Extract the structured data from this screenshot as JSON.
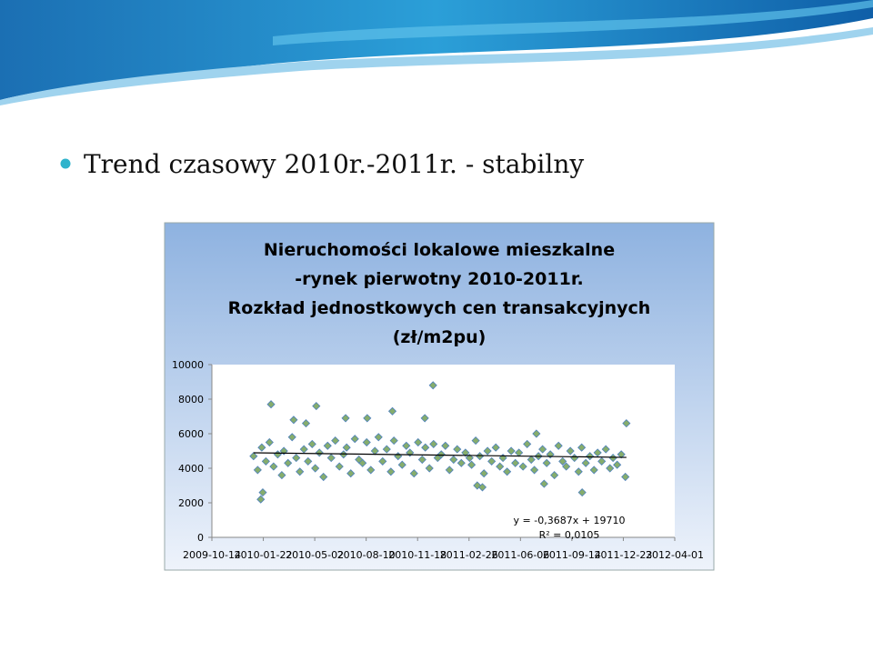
{
  "slide": {
    "bullet": "Trend czasowy 2010r.-2011r. - stabilny"
  },
  "chart_data": {
    "type": "scatter",
    "title": [
      "Nieruchomości lokalowe mieszkalne",
      "-rynek pierwotny 2010-2011r.",
      "Rozkład jednostkowych cen transakcyjnych",
      "(zł/m2pu)"
    ],
    "series": [
      {
        "color": "#86ad6c",
        "x": [
          "2010-01-03",
          "2010-01-11",
          "2010-01-19",
          "2010-01-27",
          "2010-02-03",
          "2010-02-11",
          "2010-02-19",
          "2010-02-27",
          "2010-03-03",
          "2010-03-11",
          "2010-03-19",
          "2010-03-27",
          "2010-04-03",
          "2010-04-11",
          "2010-04-19",
          "2010-04-27",
          "2010-05-03",
          "2010-05-11",
          "2010-05-19",
          "2010-05-27",
          "2010-06-03",
          "2010-06-11",
          "2010-06-19",
          "2010-06-27",
          "2010-07-03",
          "2010-07-11",
          "2010-07-19",
          "2010-07-27",
          "2010-08-03",
          "2010-08-11",
          "2010-08-19",
          "2010-08-27",
          "2010-09-03",
          "2010-09-11",
          "2010-09-19",
          "2010-09-27",
          "2010-10-03",
          "2010-10-11",
          "2010-10-19",
          "2010-10-27",
          "2010-11-03",
          "2010-11-11",
          "2010-11-19",
          "2010-11-27",
          "2010-12-03",
          "2010-12-11",
          "2010-12-19",
          "2010-12-27",
          "2011-01-03",
          "2011-01-11",
          "2011-01-19",
          "2011-01-27",
          "2011-02-03",
          "2011-02-11",
          "2011-02-19",
          "2011-02-27",
          "2011-03-03",
          "2011-03-11",
          "2011-03-19",
          "2011-03-27",
          "2011-04-03",
          "2011-04-11",
          "2011-04-19",
          "2011-04-27",
          "2011-05-03",
          "2011-05-11",
          "2011-05-19",
          "2011-05-27",
          "2011-06-03",
          "2011-06-11",
          "2011-06-19",
          "2011-06-27",
          "2011-07-03",
          "2011-07-11",
          "2011-07-19",
          "2011-07-27",
          "2011-08-03",
          "2011-08-11",
          "2011-08-19",
          "2011-08-27",
          "2011-09-03",
          "2011-09-11",
          "2011-09-19",
          "2011-09-27",
          "2011-10-03",
          "2011-10-11",
          "2011-10-19",
          "2011-10-27",
          "2011-11-03",
          "2011-11-11",
          "2011-11-19",
          "2011-11-27",
          "2011-12-03",
          "2011-12-11",
          "2011-12-19",
          "2011-12-27",
          "2010-02-06",
          "2010-05-05",
          "2010-12-18",
          "2010-01-17",
          "2010-01-21",
          "2010-03-22",
          "2010-04-15",
          "2010-07-01",
          "2010-08-12",
          "2010-09-30",
          "2010-12-02",
          "2011-12-29",
          "2011-03-14",
          "2011-03-24",
          "2011-10-04",
          "2011-07-07",
          "2011-07-22"
        ],
        "values": [
          4700,
          3900,
          5200,
          4400,
          5500,
          4100,
          4800,
          3600,
          5000,
          4300,
          5800,
          4600,
          3800,
          5100,
          4400,
          5400,
          4000,
          4900,
          3500,
          5300,
          4600,
          5600,
          4100,
          4800,
          5200,
          3700,
          5700,
          4500,
          4300,
          5500,
          3900,
          5000,
          5800,
          4400,
          5100,
          3800,
          5600,
          4700,
          4200,
          5300,
          4900,
          3700,
          5500,
          4500,
          5200,
          4000,
          5400,
          4600,
          4800,
          5300,
          3900,
          4500,
          5100,
          4300,
          4900,
          4600,
          4200,
          5600,
          4700,
          3700,
          5000,
          4400,
          5200,
          4100,
          4600,
          3800,
          5000,
          4300,
          4900,
          4100,
          5400,
          4500,
          3900,
          4700,
          5100,
          4300,
          4800,
          3600,
          5300,
          4400,
          4100,
          5000,
          4600,
          3800,
          5200,
          4300,
          4700,
          3900,
          4900,
          4400,
          5100,
          4000,
          4600,
          4200,
          4800,
          3500,
          7700,
          7600,
          8800,
          2200,
          2600,
          6800,
          6600,
          6900,
          6900,
          7300,
          6900,
          6600,
          3000,
          2900,
          2600,
          6000,
          3100
        ]
      }
    ],
    "trendline": {
      "slope": -0.3687,
      "intercept": 19710,
      "color": "#000000"
    },
    "annotations": [
      "y = -0,3687x + 19710",
      "R² = 0,0105"
    ],
    "xlim": [
      "2009-10-14",
      "2012-04-01"
    ],
    "xticks": [
      "2009-10-14",
      "2010-01-22",
      "2010-05-02",
      "2010-08-10",
      "2010-11-18",
      "2011-02-26",
      "2011-06-06",
      "2011-09-14",
      "2011-12-23",
      "2012-04-01"
    ],
    "ylim": [
      0,
      10000
    ],
    "yticks": [
      0,
      2000,
      4000,
      6000,
      8000,
      10000
    ]
  }
}
